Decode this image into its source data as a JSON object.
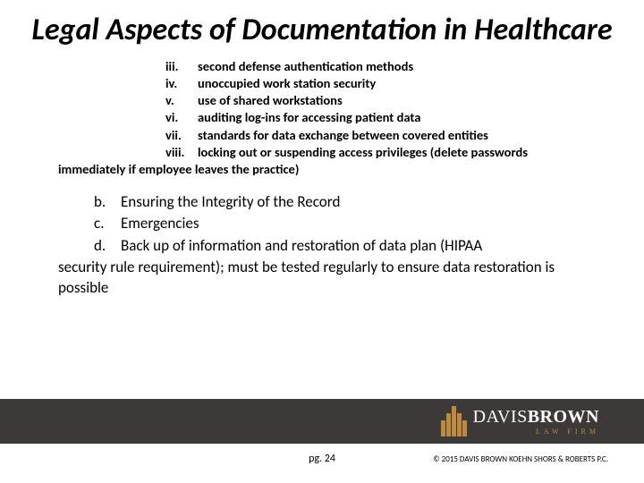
{
  "title": "Legal Aspects of Documentation in Healthcare",
  "roman_items": [
    {
      "marker": "iii.",
      "text": "second defense authentication methods"
    },
    {
      "marker": "iv.",
      "text": "unoccupied work station security"
    },
    {
      "marker": "v.",
      "text": "use of shared workstations"
    },
    {
      "marker": "vi.",
      "text": "auditing log-ins for accessing patient data"
    },
    {
      "marker": "vii.",
      "text": "standards for data exchange between covered entities"
    },
    {
      "marker": "viii.",
      "text": "locking out or suspending access privileges (delete passwords"
    }
  ],
  "roman_wrap": "immediately if employee leaves the practice)",
  "letter_items": [
    {
      "marker": "b.",
      "text": "Ensuring the Integrity of the Record"
    },
    {
      "marker": "c.",
      "text": "Emergencies"
    },
    {
      "marker": "d.",
      "text": "Back up of information and restoration of data plan (HIPAA"
    }
  ],
  "letter_wrap": "security rule requirement); must be tested regularly to ensure data restoration is possible",
  "logo": {
    "main_thin": "DAVIS",
    "main_bold": "BROWN",
    "sub": "LAW FIRM"
  },
  "page": "pg. 24",
  "copyright": "© 2015 DAVIS BROWN KOEHN SHORS & ROBERTS P.C.",
  "colors": {
    "footer_bg": "#3c3a38",
    "accent": "#c08a3e"
  }
}
